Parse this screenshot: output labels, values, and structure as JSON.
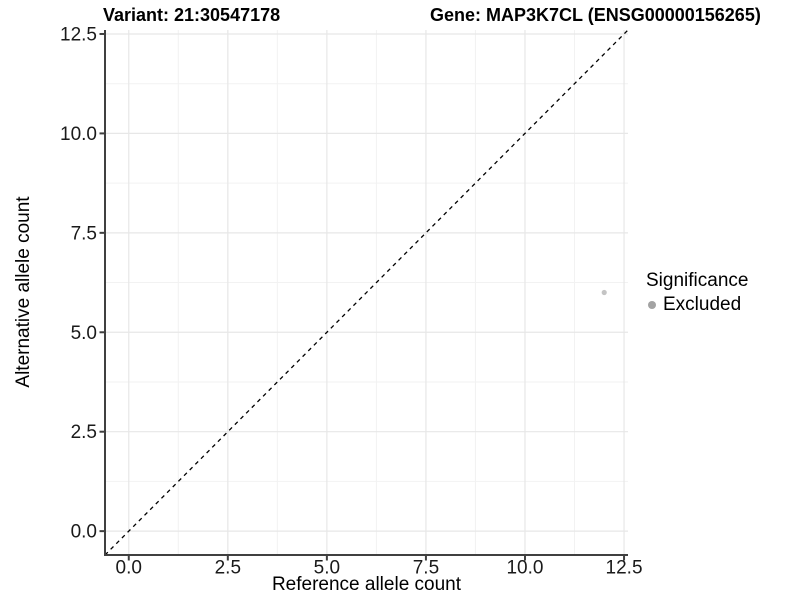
{
  "chart_data": {
    "type": "scatter",
    "title_left": "Variant: 21:30547178",
    "title_right": "Gene: MAP3K7CL (ENSG00000156265)",
    "xlabel": "Reference allele count",
    "ylabel": "Alternative allele count",
    "xlim": [
      -0.6,
      12.6
    ],
    "ylim": [
      -0.6,
      12.6
    ],
    "x_ticks": [
      0.0,
      2.5,
      5.0,
      7.5,
      10.0,
      12.5
    ],
    "y_ticks": [
      0.0,
      2.5,
      5.0,
      7.5,
      10.0,
      12.5
    ],
    "minor_gridlines": true,
    "grid": true,
    "legend_position": "right",
    "legend_title": "Significance",
    "series": [
      {
        "name": "Excluded",
        "color": "#c4c4c4",
        "legend_key_color": "#a3a3a3",
        "points": [
          {
            "x": 12,
            "y": 6
          }
        ]
      }
    ],
    "reference_line": {
      "type": "identity",
      "slope": 1,
      "intercept": 0,
      "style": "dashed",
      "color": "#000000"
    }
  },
  "colors": {
    "background": "#ffffff",
    "grid_major": "#e7e7e7",
    "grid_minor": "#f2f2f2",
    "axis_line": "#404040",
    "tick_label": "#1a1a1a",
    "title_text": "#000000"
  }
}
